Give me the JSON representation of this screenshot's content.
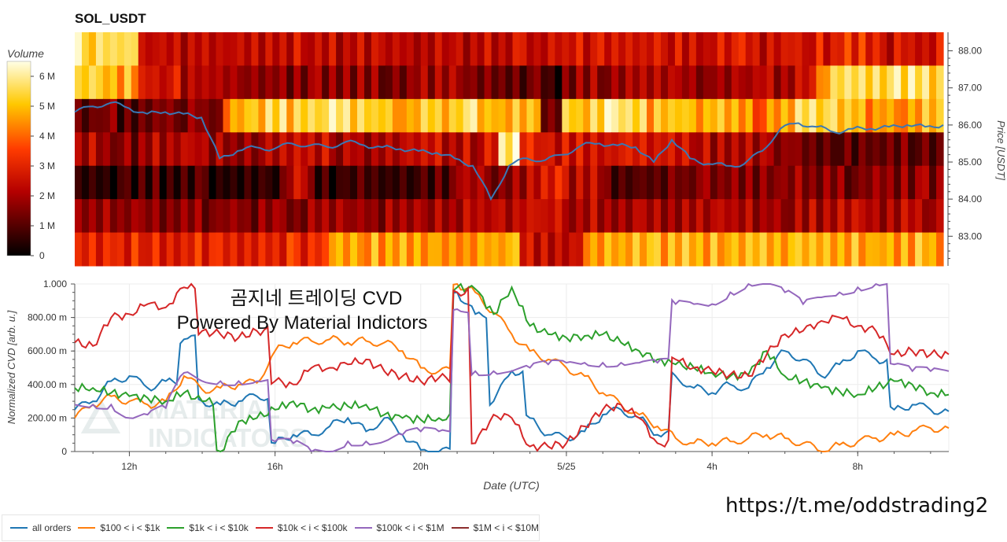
{
  "title": "SOL_USDT",
  "heatmap": {
    "colorbar_label": "Volume",
    "colorbar_ticks": [
      "6 M",
      "5 M",
      "4 M",
      "3 M",
      "2 M",
      "1 M",
      "0"
    ],
    "price_axis_label": "Price [USDT]",
    "price_ticks": [
      "88.00",
      "87.00",
      "86.00",
      "85.00",
      "84.00",
      "83.00"
    ]
  },
  "cvd": {
    "ylabel": "Normalized CVD [arb. u.]",
    "y_ticks": [
      "1.000",
      "800.00 m",
      "600.00 m",
      "400.00 m",
      "200.00 m",
      "0"
    ],
    "x_ticks": [
      "12h",
      "16h",
      "20h",
      "5/25",
      "4h",
      "8h"
    ],
    "xlabel": "Date (UTC)"
  },
  "overlay": {
    "line1": "곰지네 트레이딩 CVD",
    "line2": "Powered By Material Indictors"
  },
  "logo_text": {
    "line1": "MATERIAL",
    "line2": "INDICATORS"
  },
  "url": "https://t.me/oddstrading2",
  "legend": [
    {
      "label": "all orders",
      "color": "#1f77b4"
    },
    {
      "label": "$100 < i < $1k",
      "color": "#ff7f0e"
    },
    {
      "label": "$1k < i < $10k",
      "color": "#2ca02c"
    },
    {
      "label": "$10k < i < $100k",
      "color": "#d62728"
    },
    {
      "label": "$100k < i < $1M",
      "color": "#9467bd"
    },
    {
      "label": "$1M < i < $10M",
      "color": "#8c2d2d"
    }
  ],
  "chart_data": [
    {
      "type": "heatmap",
      "title": "SOL_USDT",
      "ylabel": "Price [USDT]",
      "ylim": [
        82.2,
        88.5
      ],
      "colorbar": "Volume",
      "zlim": [
        0,
        6.5
      ],
      "x_range": [
        "10:25",
        "10:25 next day"
      ],
      "price_bands": [
        88.0,
        87.0,
        86.0,
        85.0,
        84.0,
        83.0,
        82.3
      ],
      "band_levels": [
        [
          6.0,
          6.0,
          6.0,
          2.8,
          2.8,
          2.8,
          2.8,
          2.8,
          2.8,
          2.8,
          2.8,
          2.8,
          2.8,
          2.8,
          2.8,
          2.8,
          2.8,
          2.8,
          2.8,
          2.8,
          2.8,
          2.8,
          2.8,
          3.0,
          3.0,
          3.2,
          3.0,
          3.0,
          3.0,
          2.8,
          3.0,
          3.0,
          3.0,
          3.2,
          3.2,
          3.3,
          3.5,
          3.5,
          3.0,
          3.0,
          3.0
        ],
        [
          5.8,
          5.5,
          5.2,
          3.0,
          3.0,
          2.5,
          2.5,
          2.3,
          2.0,
          2.0,
          2.0,
          2.2,
          2.2,
          2.0,
          2.0,
          2.0,
          2.2,
          2.2,
          2.0,
          1.8,
          1.5,
          1.5,
          1.2,
          2.0,
          2.2,
          2.5,
          2.5,
          2.5,
          2.3,
          2.0,
          2.5,
          2.5,
          2.7,
          2.5,
          3.0,
          5.5,
          5.8,
          5.8,
          6.0,
          6.0,
          5.8
        ],
        [
          1.5,
          1.8,
          1.5,
          1.5,
          1.8,
          2.0,
          1.8,
          5.0,
          5.5,
          5.8,
          5.5,
          6.0,
          6.0,
          5.8,
          5.5,
          5.0,
          5.8,
          5.5,
          5.8,
          5.5,
          5.3,
          5.5,
          1.5,
          5.5,
          5.8,
          6.0,
          5.8,
          5.2,
          5.5,
          5.0,
          5.2,
          5.2,
          4.5,
          5.0,
          5.8,
          5.5,
          5.5,
          5.0,
          5.2,
          5.0,
          5.2
        ],
        [
          2.5,
          2.3,
          2.0,
          2.5,
          2.5,
          2.5,
          2.3,
          2.3,
          2.3,
          2.5,
          2.8,
          2.8,
          2.5,
          2.5,
          2.5,
          2.5,
          2.8,
          2.8,
          2.8,
          3.0,
          6.5,
          3.5,
          3.0,
          3.0,
          3.0,
          3.0,
          3.0,
          3.2,
          3.0,
          3.0,
          2.5,
          2.5,
          2.2,
          2.2,
          1.5,
          1.5,
          1.5,
          1.5,
          1.8,
          1.8,
          1.5
        ],
        [
          0.8,
          0.8,
          1.2,
          1.2,
          1.0,
          1.0,
          1.0,
          1.0,
          1.2,
          1.2,
          3.0,
          1.2,
          1.0,
          1.0,
          1.0,
          1.2,
          1.2,
          1.5,
          2.5,
          2.2,
          2.0,
          2.5,
          3.5,
          2.5,
          2.5,
          1.5,
          1.5,
          1.5,
          1.8,
          2.0,
          2.0,
          2.0,
          2.0,
          2.0,
          2.0,
          2.0,
          2.0,
          2.0,
          2.0,
          2.0,
          2.0
        ],
        [
          2.0,
          2.0,
          2.0,
          2.0,
          2.0,
          2.0,
          2.0,
          2.0,
          2.0,
          2.0,
          2.0,
          2.2,
          2.2,
          2.2,
          2.2,
          2.2,
          2.5,
          2.5,
          2.5,
          2.5,
          2.5,
          3.0,
          2.8,
          2.5,
          2.5,
          2.5,
          2.5,
          2.5,
          2.5,
          2.5,
          2.5,
          2.5,
          2.5,
          2.5,
          2.5,
          2.5,
          2.5,
          2.5,
          2.5,
          2.5,
          2.5
        ],
        [
          3.5,
          3.5,
          3.5,
          3.5,
          3.5,
          3.5,
          3.5,
          3.5,
          3.5,
          3.5,
          3.5,
          3.5,
          5.0,
          5.0,
          5.0,
          5.0,
          5.0,
          5.0,
          5.0,
          5.0,
          5.5,
          3.0,
          3.0,
          3.0,
          5.2,
          5.2,
          5.2,
          5.2,
          5.2,
          5.2,
          5.2,
          5.2,
          5.2,
          5.2,
          5.2,
          5.2,
          5.2,
          5.2,
          5.2,
          5.2,
          5.2
        ]
      ],
      "price_line_hours": [
        0,
        0.5,
        1,
        1.5,
        2,
        2.5,
        3,
        3.5,
        4,
        4.5,
        5,
        5.5,
        6,
        6.5,
        7,
        7.5,
        8,
        8.5,
        9,
        9.5,
        10,
        10.5,
        11,
        11.5,
        12,
        12.5,
        13,
        13.5,
        14,
        14.5,
        15,
        15.5,
        16,
        16.5,
        17,
        17.5,
        18,
        18.5,
        19,
        19.5,
        20,
        20.5,
        21,
        21.5,
        22,
        22.5,
        23,
        23.5,
        24
      ],
      "price_line": [
        86.35,
        86.5,
        86.6,
        86.45,
        86.3,
        86.35,
        86.3,
        86.2,
        85.1,
        85.3,
        85.4,
        85.35,
        85.5,
        85.45,
        85.4,
        85.55,
        85.45,
        85.4,
        85.35,
        85.3,
        85.25,
        85.1,
        84.9,
        84.0,
        84.9,
        85.1,
        85.05,
        85.2,
        85.45,
        85.5,
        85.45,
        85.4,
        85.0,
        85.6,
        85.1,
        84.95,
        84.9,
        84.95,
        85.3,
        85.9,
        86.05,
        85.95,
        85.8,
        85.9,
        85.9,
        85.95,
        86.0,
        85.95,
        86.0
      ]
    },
    {
      "type": "line",
      "xlabel": "Date (UTC)",
      "ylabel": "Normalized CVD [arb. u.]",
      "ylim": [
        0,
        1.0
      ],
      "x_ticks": [
        "12h",
        "16h",
        "20h",
        "5/25",
        "4h",
        "8h"
      ],
      "x_hours": [
        0,
        0.5,
        1,
        1.5,
        2,
        2.5,
        3,
        3.5,
        4,
        4.5,
        5,
        5.5,
        6,
        6.5,
        7,
        7.5,
        8,
        8.5,
        9,
        9.5,
        10,
        10.5,
        11,
        11.5,
        12,
        12.5,
        13,
        13.5,
        14,
        14.5,
        15,
        15.5,
        16,
        16.5,
        17,
        17.5,
        18,
        18.5,
        19,
        19.5,
        20,
        20.5,
        21,
        21.5,
        22,
        22.5,
        23,
        23.5,
        24
      ],
      "series": [
        {
          "name": "all orders",
          "color": "#1f77b4",
          "values": [
            0.25,
            0.3,
            0.42,
            0.45,
            0.38,
            0.42,
            0.67,
            0.3,
            0.28,
            0.3,
            0.33,
            0.05,
            0.1,
            0.1,
            0.15,
            0.2,
            0.12,
            0.2,
            0.1,
            0.01,
            0.0,
            0.95,
            0.82,
            0.3,
            0.48,
            0.2,
            0.1,
            0.08,
            0.12,
            0.22,
            0.25,
            0.2,
            0.1,
            0.45,
            0.38,
            0.35,
            0.4,
            0.38,
            0.5,
            0.6,
            0.55,
            0.45,
            0.52,
            0.6,
            0.55,
            0.25,
            0.28,
            0.25,
            0.24
          ]
        },
        {
          "name": "$100 < i < $1k",
          "color": "#ff7f0e",
          "values": [
            0.2,
            0.28,
            0.33,
            0.3,
            0.28,
            0.3,
            0.45,
            0.37,
            0.38,
            0.4,
            0.41,
            0.6,
            0.65,
            0.66,
            0.67,
            0.65,
            0.66,
            0.65,
            0.6,
            0.5,
            0.48,
            1.0,
            0.95,
            0.83,
            0.7,
            0.6,
            0.55,
            0.5,
            0.45,
            0.35,
            0.28,
            0.22,
            0.15,
            0.08,
            0.05,
            0.05,
            0.06,
            0.08,
            0.1,
            0.08,
            0.05,
            0.0,
            0.04,
            0.06,
            0.08,
            0.1,
            0.12,
            0.14,
            0.14
          ]
        },
        {
          "name": "$1k < i < $10k",
          "color": "#2ca02c",
          "values": [
            0.38,
            0.38,
            0.35,
            0.33,
            0.32,
            0.3,
            0.35,
            0.3,
            0.0,
            0.18,
            0.2,
            0.25,
            0.3,
            0.25,
            0.26,
            0.27,
            0.28,
            0.22,
            0.2,
            0.19,
            0.2,
            0.98,
            0.97,
            0.82,
            0.98,
            0.75,
            0.7,
            0.68,
            0.69,
            0.7,
            0.65,
            0.6,
            0.55,
            0.52,
            0.5,
            0.47,
            0.45,
            0.46,
            0.6,
            0.45,
            0.42,
            0.38,
            0.36,
            0.34,
            0.38,
            0.42,
            0.4,
            0.35,
            0.34
          ]
        },
        {
          "name": "$10k < i < $100k",
          "color": "#d62728",
          "values": [
            0.65,
            0.63,
            0.8,
            0.82,
            0.88,
            0.86,
            0.98,
            0.72,
            0.7,
            0.68,
            0.72,
            0.42,
            0.4,
            0.5,
            0.5,
            0.52,
            0.55,
            0.48,
            0.45,
            0.42,
            0.44,
            0.95,
            0.05,
            0.22,
            0.2,
            0.03,
            0.03,
            0.05,
            0.15,
            0.25,
            0.28,
            0.2,
            0.05,
            0.55,
            0.5,
            0.48,
            0.46,
            0.45,
            0.58,
            0.7,
            0.72,
            0.78,
            0.8,
            0.75,
            0.72,
            0.58,
            0.6,
            0.58,
            0.58
          ]
        },
        {
          "name": "$100k < i < $1M",
          "color": "#9467bd",
          "values": [
            0.28,
            0.28,
            0.28,
            0.2,
            0.22,
            0.26,
            0.47,
            0.42,
            0.42,
            0.42,
            0.42,
            0.06,
            0.05,
            0.0,
            0.0,
            0.06,
            0.06,
            0.06,
            0.1,
            0.12,
            0.12,
            0.85,
            0.48,
            0.48,
            0.48,
            0.5,
            0.52,
            0.53,
            0.53,
            0.53,
            0.53,
            0.53,
            0.53,
            0.88,
            0.88,
            0.88,
            0.95,
            1.0,
            1.0,
            0.95,
            0.88,
            0.92,
            0.95,
            0.98,
            1.0,
            0.52,
            0.48,
            0.48,
            0.48
          ]
        },
        {
          "name": "$1M < i < $10M",
          "color": "#8c2d2d",
          "values": []
        }
      ]
    }
  ]
}
